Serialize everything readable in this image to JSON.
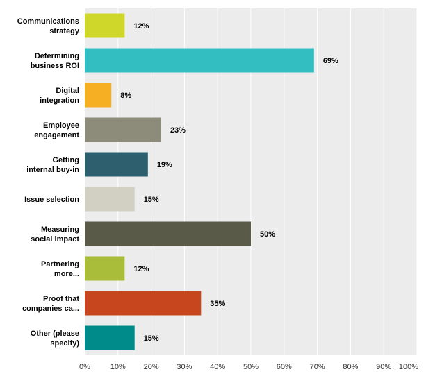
{
  "chart_data": {
    "type": "bar",
    "orientation": "horizontal",
    "categories": [
      [
        "Communications",
        "strategy"
      ],
      [
        "Determining",
        "business ROI"
      ],
      [
        "Digital",
        "integration"
      ],
      [
        "Employee",
        "engagement"
      ],
      [
        "Getting",
        "internal buy-in"
      ],
      [
        "Issue selection"
      ],
      [
        "Measuring",
        "social impact"
      ],
      [
        "Partnering",
        "more..."
      ],
      [
        "Proof that",
        "companies ca..."
      ],
      [
        "Other (please",
        "specify)"
      ]
    ],
    "values": [
      12,
      69,
      8,
      23,
      19,
      15,
      50,
      12,
      35,
      15
    ],
    "value_labels": [
      "12%",
      "69%",
      "8%",
      "23%",
      "19%",
      "15%",
      "50%",
      "12%",
      "35%",
      "15%"
    ],
    "colors": [
      "#d0d72b",
      "#33bfc1",
      "#f6ae22",
      "#8d8c7a",
      "#2e5f6e",
      "#d2d0c2",
      "#5a5a48",
      "#aabd3b",
      "#c8461e",
      "#008b8b"
    ],
    "xlim": [
      0,
      100
    ],
    "xticks": [
      "0%",
      "10%",
      "20%",
      "30%",
      "40%",
      "50%",
      "60%",
      "70%",
      "80%",
      "90%",
      "100%"
    ],
    "grid": true,
    "legend": "none",
    "background": "#ececec"
  }
}
